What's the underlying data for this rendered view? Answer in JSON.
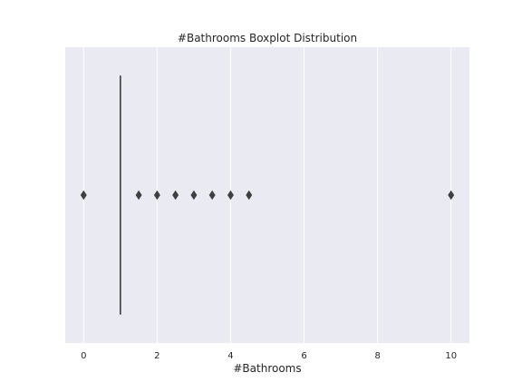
{
  "chart_data": {
    "type": "boxplot",
    "title": "#Bathrooms Boxplot Distribution",
    "xlabel": "#Bathrooms",
    "ylabel": "",
    "orientation": "horizontal",
    "xlim": [
      -0.5,
      10.5
    ],
    "xticks": [
      0,
      2,
      4,
      6,
      8,
      10
    ],
    "xtick_labels": [
      "0",
      "2",
      "4",
      "6",
      "8",
      "10"
    ],
    "grid": true,
    "box": {
      "q1": 1,
      "median": 1,
      "q3": 1,
      "whisker_low": 1,
      "whisker_high": 1
    },
    "outliers": [
      0,
      1.5,
      2,
      2.5,
      3,
      3.5,
      4,
      4.5,
      10
    ],
    "colors": {
      "plot_background": "#eaeaf2",
      "grid": "#ffffff",
      "marks": "#3f3f3f"
    }
  }
}
